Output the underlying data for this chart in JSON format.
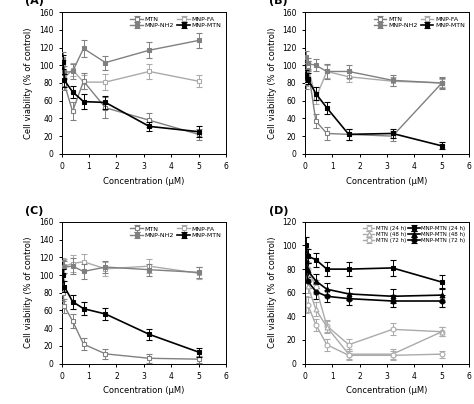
{
  "x": [
    0.05,
    0.1,
    0.4,
    0.8,
    1.6,
    3.2,
    5.0
  ],
  "A": {
    "MTN": {
      "y": [
        87,
        79,
        48,
        82,
        52,
        38,
        22
      ],
      "err": [
        8,
        7,
        10,
        9,
        12,
        8,
        6
      ]
    },
    "MNP-NH2": {
      "y": [
        107,
        92,
        93,
        119,
        103,
        117,
        128
      ],
      "err": [
        8,
        7,
        8,
        10,
        8,
        9,
        8
      ]
    },
    "MNP-FA": {
      "y": [
        100,
        86,
        95,
        81,
        81,
        93,
        82
      ],
      "err": [
        6,
        8,
        7,
        8,
        9,
        8,
        7
      ]
    },
    "MNP-MTN": {
      "y": [
        104,
        83,
        70,
        59,
        58,
        31,
        25
      ],
      "err": [
        8,
        7,
        7,
        8,
        7,
        5,
        6
      ]
    }
  },
  "B": {
    "MTN": {
      "y": [
        80,
        99,
        37,
        23,
        22,
        20,
        80
      ],
      "err": [
        7,
        6,
        8,
        7,
        6,
        6,
        7
      ]
    },
    "MNP-NH2": {
      "y": [
        109,
        102,
        100,
        93,
        93,
        83,
        80
      ],
      "err": [
        7,
        6,
        7,
        8,
        7,
        6,
        6
      ]
    },
    "MNP-FA": {
      "y": [
        83,
        100,
        63,
        93,
        87,
        82,
        80
      ],
      "err": [
        6,
        5,
        7,
        7,
        6,
        5,
        5
      ]
    },
    "MNP-MTN": {
      "y": [
        88,
        85,
        68,
        52,
        22,
        23,
        9
      ],
      "err": [
        7,
        6,
        7,
        7,
        6,
        5,
        4
      ]
    }
  },
  "C": {
    "MTN": {
      "y": [
        80,
        65,
        48,
        22,
        11,
        6,
        5
      ],
      "err": [
        9,
        8,
        8,
        7,
        6,
        5,
        4
      ]
    },
    "MNP-NH2": {
      "y": [
        109,
        109,
        110,
        104,
        109,
        106,
        103
      ],
      "err": [
        8,
        7,
        9,
        8,
        7,
        7,
        6
      ]
    },
    "MNP-FA": {
      "y": [
        110,
        110,
        113,
        115,
        107,
        110,
        102
      ],
      "err": [
        9,
        8,
        10,
        9,
        8,
        8,
        7
      ]
    },
    "MNP-MTN": {
      "y": [
        100,
        87,
        70,
        62,
        56,
        33,
        13
      ],
      "err": [
        7,
        6,
        8,
        7,
        7,
        6,
        5
      ]
    }
  },
  "D": {
    "MTN_24h": {
      "y": [
        91,
        80,
        65,
        32,
        16,
        29,
        27
      ],
      "err": [
        7,
        6,
        6,
        5,
        5,
        5,
        4
      ]
    },
    "MTN_48h": {
      "y": [
        75,
        66,
        46,
        31,
        8,
        8,
        27
      ],
      "err": [
        7,
        6,
        6,
        5,
        4,
        4,
        4
      ]
    },
    "MTN_72h": {
      "y": [
        50,
        50,
        33,
        16,
        7,
        7,
        8
      ],
      "err": [
        7,
        6,
        5,
        5,
        4,
        4,
        3
      ]
    },
    "MNP-MTN_24h": {
      "y": [
        100,
        91,
        88,
        80,
        80,
        81,
        69
      ],
      "err": [
        7,
        6,
        6,
        6,
        6,
        7,
        6
      ]
    },
    "MNP-MTN_48h": {
      "y": [
        87,
        79,
        70,
        63,
        59,
        57,
        58
      ],
      "err": [
        7,
        6,
        6,
        5,
        5,
        6,
        6
      ]
    },
    "MNP-MTN_72h": {
      "y": [
        80,
        70,
        61,
        57,
        55,
        53,
        53
      ],
      "err": [
        7,
        6,
        6,
        5,
        5,
        5,
        5
      ]
    }
  },
  "panel_labels": [
    "(A)",
    "(B)",
    "(C)",
    "(D)"
  ],
  "xlabel": "Concentration (μM)",
  "ylabel": "Cell viability (% of control)",
  "xlim": [
    0,
    6
  ],
  "ylim_ABC": [
    0,
    160
  ],
  "ylim_D": [
    0,
    120
  ],
  "yticks_ABC": [
    0,
    20,
    40,
    60,
    80,
    100,
    120,
    140,
    160
  ],
  "yticks_D": [
    0,
    20,
    40,
    60,
    80,
    100,
    120
  ],
  "xticks": [
    0,
    1,
    2,
    3,
    4,
    5,
    6
  ]
}
